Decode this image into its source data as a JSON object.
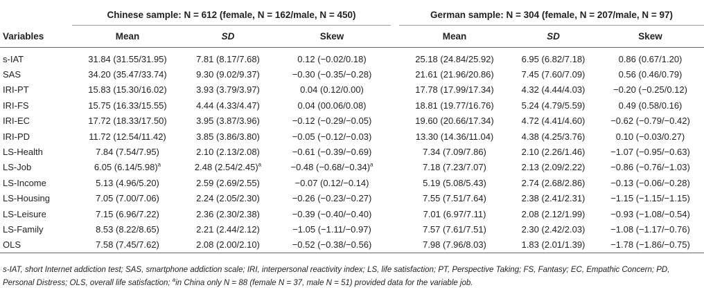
{
  "header": {
    "chinese_group": "Chinese sample: N = 612 (female, N = 162/male, N =  450)",
    "german_group": "German sample: N = 304 (female, N = 207/male, N = 97)",
    "columns": {
      "variables": "Variables",
      "mean": "Mean",
      "sd": "SD",
      "skew": "Skew"
    }
  },
  "rows": [
    {
      "var": "s-IAT",
      "c_mean": "31.84 (31.55/31.95)",
      "c_sd": "7.81 (8.17/7.68)",
      "c_skew": "0.12 (−0.02/0.18)",
      "g_mean": "25.18 (24.84/25.92)",
      "g_sd": "6.95 (6.82/7.18)",
      "g_skew": "0.86 (0.67/1.20)"
    },
    {
      "var": "SAS",
      "c_mean": "34.20 (35.47/33.74)",
      "c_sd": "9.30 (9.02/9.37)",
      "c_skew": "−0.30 (−0.35/−0.28)",
      "g_mean": "21.61 (21.96/20.86)",
      "g_sd": "7.45 (7.60/7.09)",
      "g_skew": "0.56 (0.46/0.79)"
    },
    {
      "var": "IRI-PT",
      "c_mean": "15.83 (15.30/16.02)",
      "c_sd": "3.93 (3.79/3.97)",
      "c_skew": "0.04 (0.12/0.00)",
      "g_mean": "17.78 (17.99/17.34)",
      "g_sd": "4.32 (4.44/4.03)",
      "g_skew": "−0.20 (−0.25/0.12)"
    },
    {
      "var": "IRI-FS",
      "c_mean": "15.75 (16.33/15.55)",
      "c_sd": "4.44 (4.33/4.47)",
      "c_skew": "0.04 (00.06/0.08)",
      "g_mean": "18.81 (19.77/16.76)",
      "g_sd": "5.24 (4.79/5.59)",
      "g_skew": "0.49 (0.58/0.16)"
    },
    {
      "var": "IRI-EC",
      "c_mean": "17.72 (18.33/17.50)",
      "c_sd": "3.95 (3.87/3.96)",
      "c_skew": "−0.12 (−0.29/−0.05)",
      "g_mean": "19.60 (20.66/17.34)",
      "g_sd": "4.72 (4.41/4.60)",
      "g_skew": "−0.62 (−0.79/−0.42)"
    },
    {
      "var": "IRI-PD",
      "c_mean": "11.72 (12.54/11.42)",
      "c_sd": "3.85 (3.86/3.80)",
      "c_skew": "−0.05 (−0.12/−0.03)",
      "g_mean": "13.30 (14.36/11.04)",
      "g_sd": "4.38 (4.25/3.76)",
      "g_skew": "0.10 (−0.03/0.27)"
    },
    {
      "var": "LS-Health",
      "c_mean": "7.84 (7.54/7.95)",
      "c_sd": "2.10 (2.13/2.08)",
      "c_skew": "−0.61 (−0.39/−0.69)",
      "g_mean": "7.34 (7.09/7.86)",
      "g_sd": "2.10 (2.26/1.46)",
      "g_skew": "−1.07 (−0.95/−0.63)"
    },
    {
      "var": "LS-Job",
      "c_mean": "6.05 (6.14/5.98)",
      "c_mean_sup": "a",
      "c_sd": "2.48 (2.54/2.45)",
      "c_sd_sup": "a",
      "c_skew": "−0.48 (−0.68/−0.34)",
      "c_skew_sup": "a",
      "g_mean": "7.18 (7.23/7.07)",
      "g_sd": "2.13 (2.09/2.22)",
      "g_skew": "−0.86 (−0.76/−1.03)"
    },
    {
      "var": "LS-Income",
      "c_mean": "5.13 (4.96/5.20)",
      "c_sd": "2.59 (2.69/2.55)",
      "c_skew": "−0.07 (0.12/−0.14)",
      "g_mean": "5.19 (5.08/5.43)",
      "g_sd": "2.74 (2.68/2.86)",
      "g_skew": "−0.13 (−0.06/−0.28)"
    },
    {
      "var": "LS-Housing",
      "c_mean": "7.05 (7.00/7.06)",
      "c_sd": "2.24 (2.05/2.30)",
      "c_skew": "−0.26 (−0.23/−0.27)",
      "g_mean": "7.55 (7.51/7.64)",
      "g_sd": "2.38 (2.41/2.31)",
      "g_skew": "−1.15 (−1.15/−1.15)"
    },
    {
      "var": "LS-Leisure",
      "c_mean": "7.15 (6.96/7.22)",
      "c_sd": "2.36 (2.30/2.38)",
      "c_skew": "−0.39 (−0.40/−0.40)",
      "g_mean": "7.01 (6.97/7.11)",
      "g_sd": "2.08 (2.12/1.99)",
      "g_skew": "−0.93 (−1.08/−0.54)"
    },
    {
      "var": "LS-Family",
      "c_mean": "8.53 (8.22/8.65)",
      "c_sd": "2.21 (2.44/2.12)",
      "c_skew": "−1.05 (−1.11/−0.97)",
      "g_mean": "7.57 (7.61/7.51)",
      "g_sd": "2.30 (2.42/2.03)",
      "g_skew": "−1.08 (−1.17/−0.76)"
    },
    {
      "var": "OLS",
      "c_mean": "7.58 (7.45/7.62)",
      "c_sd": "2.08 (2.00/2.10)",
      "c_skew": "−0.52 (−0.38/−0.56)",
      "g_mean": "7.98 (7.96/8.03)",
      "g_sd": "1.83 (2.01/1.39)",
      "g_skew": "−1.78 (−1.86/−0.75)"
    }
  ],
  "footnote": {
    "main": "s-IAT, short Internet addiction test; SAS, smartphone addiction scale; IRI, interpersonal reactivity index; LS, life satisfaction; PT, Perspective Taking; FS, Fantasy; EC, Empathic Concern; PD, Personal Distress; OLS, overall life satisfaction; ",
    "sup": "a",
    "tail": "in China only N = 88 (female N = 37, male N = 51) provided data for the variable job."
  }
}
